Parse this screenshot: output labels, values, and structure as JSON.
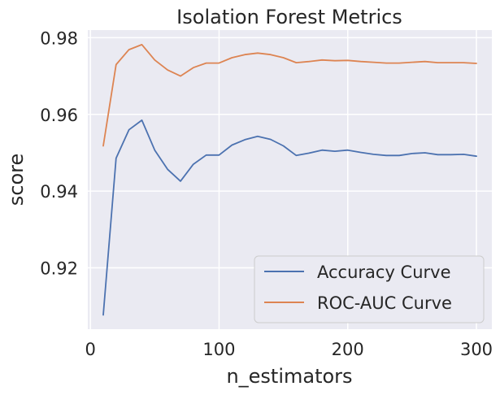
{
  "chart_data": {
    "type": "line",
    "title": "Isolation Forest Metrics",
    "xlabel": "n_estimators",
    "ylabel": "score",
    "xlim": [
      -2,
      312
    ],
    "ylim": [
      0.904,
      0.982
    ],
    "x_ticks": [
      0,
      100,
      200,
      300
    ],
    "y_ticks": [
      0.92,
      0.94,
      0.96,
      0.98
    ],
    "x_tick_labels": [
      "0",
      "100",
      "200",
      "300"
    ],
    "y_tick_labels": [
      "0.92",
      "0.94",
      "0.96",
      "0.98"
    ],
    "grid": true,
    "legend_position": "lower-right",
    "background_color": "#eaeaf2",
    "grid_color": "#ffffff",
    "x": [
      10,
      20,
      30,
      40,
      50,
      60,
      70,
      80,
      90,
      100,
      110,
      120,
      130,
      140,
      150,
      160,
      170,
      180,
      190,
      200,
      210,
      220,
      230,
      240,
      250,
      260,
      270,
      280,
      290,
      300
    ],
    "series": [
      {
        "name": "Accuracy Curve",
        "color": "#4c72b0",
        "values": [
          0.9077,
          0.9486,
          0.956,
          0.9585,
          0.9507,
          0.9457,
          0.9426,
          0.947,
          0.9494,
          0.9494,
          0.952,
          0.9534,
          0.9543,
          0.9535,
          0.9518,
          0.9493,
          0.9499,
          0.9507,
          0.9504,
          0.9507,
          0.9501,
          0.9496,
          0.9493,
          0.9493,
          0.9498,
          0.95,
          0.9495,
          0.9495,
          0.9496,
          0.9491
        ]
      },
      {
        "name": "ROC-AUC Curve",
        "color": "#dd8452",
        "values": [
          0.9518,
          0.973,
          0.9769,
          0.9782,
          0.9742,
          0.9716,
          0.97,
          0.9722,
          0.9734,
          0.9734,
          0.9748,
          0.9756,
          0.976,
          0.9756,
          0.9748,
          0.9735,
          0.9738,
          0.9742,
          0.974,
          0.9741,
          0.9738,
          0.9736,
          0.9734,
          0.9734,
          0.9736,
          0.9738,
          0.9735,
          0.9735,
          0.9735,
          0.9733
        ]
      }
    ]
  }
}
